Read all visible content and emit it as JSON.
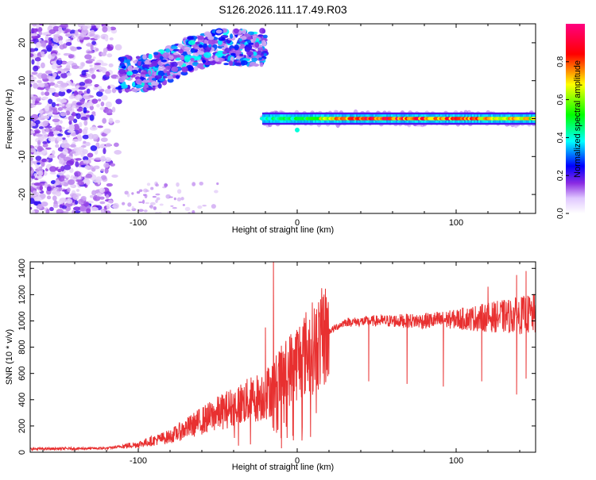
{
  "title": "S126.2026.111.17.49.R03",
  "chart_data": [
    {
      "type": "heatmap",
      "title": "S126.2026.111.17.49.R03",
      "xlabel": "Height of straight line (km)",
      "ylabel": "Frequency (Hz)",
      "xlim": [
        -168,
        150
      ],
      "ylim": [
        -25,
        25
      ],
      "x_ticks": [
        "-100",
        "0",
        "100"
      ],
      "y_ticks": [
        "-20",
        "-10",
        "0",
        "10",
        "20"
      ],
      "colorbar": {
        "label": "Normalized spectral amplitude",
        "range": [
          0,
          1
        ],
        "ticks": [
          "0.0",
          "0.2",
          "0.4",
          "0.6",
          "0.8"
        ],
        "colors": [
          "#ffffff",
          "#8a2be2",
          "#0000ff",
          "#00ffff",
          "#00ff00",
          "#ffff00",
          "#ff0000",
          "#ff0080"
        ]
      },
      "features": [
        {
          "name": "scattered-noise",
          "x_range": [
            -168,
            -110
          ],
          "freq_range": [
            -25,
            25
          ],
          "amplitude": 0.1
        },
        {
          "name": "upper-noise-band",
          "x_range": [
            -112,
            -20
          ],
          "freq_range": [
            8,
            22
          ],
          "amplitude": 0.2
        },
        {
          "name": "signal-line",
          "x_range": [
            -22,
            150
          ],
          "freq": 0,
          "amplitude_profile": [
            {
              "x": -20,
              "a": 0.45
            },
            {
              "x": 0,
              "a": 0.5
            },
            {
              "x": 20,
              "a": 0.75
            },
            {
              "x": 50,
              "a": 0.95
            },
            {
              "x": 80,
              "a": 0.9
            },
            {
              "x": 110,
              "a": 0.85
            },
            {
              "x": 150,
              "a": 0.7
            }
          ]
        }
      ]
    },
    {
      "type": "line",
      "xlabel": "Height of straight line (km)",
      "ylabel": "SNR (10 * v/v)",
      "xlim": [
        -168,
        150
      ],
      "ylim": [
        0,
        1450
      ],
      "x_ticks": [
        "-100",
        "0",
        "100"
      ],
      "y_ticks": [
        "0",
        "200",
        "400",
        "600",
        "800",
        "1000",
        "1200",
        "1400"
      ],
      "color": "#e83030",
      "envelope": [
        {
          "x": -168,
          "y": 25
        },
        {
          "x": -120,
          "y": 30
        },
        {
          "x": -100,
          "y": 60
        },
        {
          "x": -80,
          "y": 120
        },
        {
          "x": -60,
          "y": 240
        },
        {
          "x": -40,
          "y": 350
        },
        {
          "x": -20,
          "y": 440
        },
        {
          "x": -10,
          "y": 560
        },
        {
          "x": 0,
          "y": 700
        },
        {
          "x": 10,
          "y": 800
        },
        {
          "x": 20,
          "y": 920
        },
        {
          "x": 30,
          "y": 990
        },
        {
          "x": 50,
          "y": 1000
        },
        {
          "x": 80,
          "y": 1000
        },
        {
          "x": 110,
          "y": 1020
        },
        {
          "x": 150,
          "y": 1050
        }
      ],
      "spikes": [
        {
          "x": -15,
          "y": 1450
        },
        {
          "x": -20,
          "y": 950
        },
        {
          "x": 144,
          "y": 1380
        },
        {
          "x": 120,
          "y": 1260
        },
        {
          "x": 138,
          "y": 1350
        }
      ],
      "dips": [
        {
          "x": 45,
          "y": 540
        },
        {
          "x": 69,
          "y": 520
        },
        {
          "x": 92,
          "y": 500
        },
        {
          "x": 116,
          "y": 540
        },
        {
          "x": 138,
          "y": 440
        },
        {
          "x": 144,
          "y": 560
        },
        {
          "x": -10,
          "y": 30
        }
      ]
    }
  ]
}
